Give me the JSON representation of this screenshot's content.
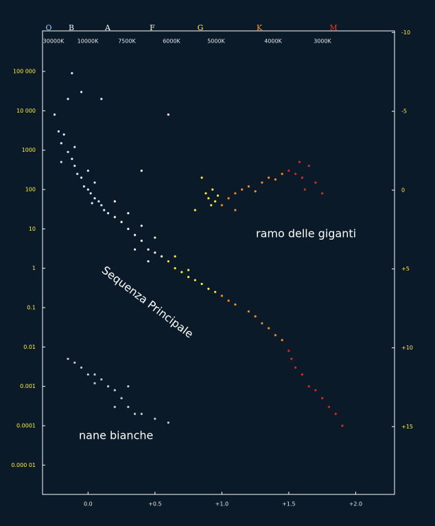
{
  "chart_data": {
    "type": "scatter",
    "xlim": [
      -0.34,
      2.29
    ],
    "xticks": [
      {
        "value": 0,
        "label": "0.0"
      },
      {
        "value": 0.5,
        "label": "+0.5"
      },
      {
        "value": 1,
        "label": "+1.0"
      },
      {
        "value": 1.5,
        "label": "+1.5"
      },
      {
        "value": 2,
        "label": "+2.0"
      }
    ],
    "yscale": "log",
    "ylim": [
      1.8e-06,
      1070000
    ],
    "yticks": [
      {
        "value": 100000,
        "label": "100 000"
      },
      {
        "value": 10000,
        "label": "10 000"
      },
      1000,
      100,
      10,
      1,
      0.1,
      0.01,
      0.001,
      0.0001,
      {
        "value": 1e-05,
        "label": "0.000 01"
      }
    ],
    "y2lim": [
      -10.1,
      19.3
    ],
    "y2_inverted": true,
    "y2ticks": [
      -10,
      -5,
      0,
      {
        "value": 5,
        "label": "+5"
      },
      {
        "value": 10,
        "label": "+10"
      },
      {
        "value": 15,
        "label": "+15"
      }
    ],
    "spectral_classes": [
      {
        "label": "O",
        "color": "#9ad0ff"
      },
      {
        "label": "B",
        "color": "#e8f0ff"
      },
      {
        "label": "A",
        "color": "#ffffff"
      },
      {
        "label": "F",
        "color": "#fff6d0"
      },
      {
        "label": "G",
        "color": "#ffee33"
      },
      {
        "label": "K",
        "color": "#ff9a20"
      },
      {
        "label": "M",
        "color": "#ff3020"
      }
    ],
    "temperature_labels": [
      "30000K",
      "10000K",
      "7500K",
      "6000K",
      "5000K",
      "4000K",
      "3000K"
    ],
    "annotations": [
      "ramo delle giganti",
      "Sequenza Principale",
      "nane bianche"
    ],
    "series": [
      {
        "color": "#d8e8ff",
        "x": [
          -0.25,
          -0.22,
          -0.2,
          -0.18,
          -0.15,
          -0.12,
          -0.1,
          -0.08,
          -0.05,
          -0.03,
          0,
          0.02,
          0.05,
          0.08,
          0.1,
          -0.15,
          -0.05,
          0.1,
          -0.12,
          0.12,
          -0.1,
          0,
          0.05,
          0.15,
          -0.2,
          0.03
        ],
        "values": [
          8000,
          3000,
          1500,
          2500,
          900,
          600,
          400,
          250,
          200,
          120,
          100,
          80,
          60,
          50,
          40,
          20000,
          30000,
          20000,
          90000,
          30,
          1200,
          300,
          150,
          25,
          500,
          45
        ]
      },
      {
        "color": "#c8c8c8",
        "x": [
          -0.15,
          -0.1,
          -0.05,
          0,
          0.05,
          0.1,
          0.15,
          0.2,
          0.25,
          0.3,
          0.35,
          0.4,
          0.5,
          0.6,
          0.2,
          0.05,
          0.3
        ],
        "values": [
          0.005,
          0.004,
          0.003,
          0.002,
          0.002,
          0.0015,
          0.001,
          0.0008,
          0.0005,
          0.0003,
          0.0002,
          0.0002,
          0.00015,
          0.00012,
          0.0003,
          0.0012,
          0.001
        ]
      },
      {
        "color": "#fff6e0",
        "x": [
          0.2,
          0.25,
          0.3,
          0.35,
          0.4,
          0.45,
          0.5,
          0.55,
          0.3,
          0.4,
          0.5,
          0.2,
          0.35,
          0.45,
          0.6,
          0.4
        ],
        "values": [
          20,
          15,
          10,
          7,
          5,
          3,
          2.5,
          2,
          25,
          12,
          6,
          50,
          3,
          1.5,
          8000,
          300
        ]
      },
      {
        "color": "#ffe830",
        "x": [
          0.6,
          0.65,
          0.7,
          0.75,
          0.8,
          0.85,
          0.9,
          0.95,
          0.65,
          0.75,
          0.9,
          0.92,
          0.95,
          0.97,
          0.93,
          0.85,
          0.8,
          0.88
        ],
        "values": [
          1.5,
          1,
          0.8,
          0.6,
          0.5,
          0.4,
          0.3,
          0.25,
          2,
          0.9,
          60,
          40,
          50,
          70,
          100,
          200,
          30,
          80
        ]
      },
      {
        "color": "#ff8a1a",
        "x": [
          1,
          1.05,
          1.1,
          1.2,
          1.25,
          1.3,
          1.35,
          1.4,
          1.45,
          1.05,
          1.1,
          1.15,
          1.2,
          1.3,
          1.35,
          1.4,
          1.25,
          1,
          1.1,
          1.45
        ],
        "values": [
          0.2,
          0.15,
          0.12,
          0.08,
          0.06,
          0.04,
          0.03,
          0.02,
          0.015,
          60,
          80,
          100,
          120,
          150,
          200,
          180,
          90,
          40,
          30,
          250
        ]
      },
      {
        "color": "#e0281a",
        "x": [
          1.5,
          1.52,
          1.55,
          1.6,
          1.65,
          1.7,
          1.75,
          1.8,
          1.85,
          1.9,
          1.5,
          1.55,
          1.6,
          1.65,
          1.7,
          1.58,
          1.62,
          1.75
        ],
        "values": [
          0.008,
          0.005,
          0.003,
          0.002,
          0.001,
          0.0008,
          0.0005,
          0.0003,
          0.0002,
          0.0001,
          300,
          250,
          200,
          400,
          150,
          500,
          100,
          80
        ]
      }
    ]
  }
}
